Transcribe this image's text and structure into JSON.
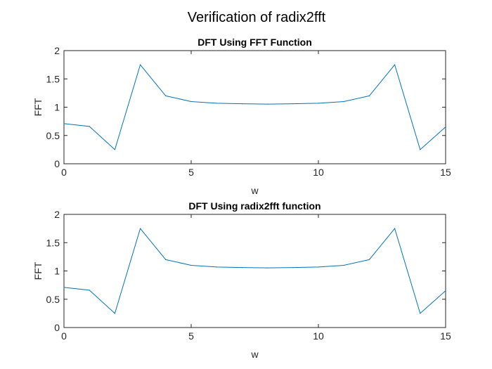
{
  "figure": {
    "title": "Verification of radix2fft"
  },
  "chart_data": [
    {
      "type": "line",
      "title": "DFT Using FFT Function",
      "xlabel": "w",
      "ylabel": "FFT",
      "xlim": [
        0,
        15
      ],
      "ylim": [
        0,
        2
      ],
      "xticks": [
        0,
        5,
        10,
        15
      ],
      "yticks": [
        0,
        0.5,
        1,
        1.5,
        2
      ],
      "xtick_labels": [
        "0",
        "5",
        "10",
        "15"
      ],
      "ytick_labels": [
        "0",
        "0.5",
        "1",
        "1.5",
        "2"
      ],
      "grid": false,
      "box": true,
      "series": [
        {
          "color": "#0072BD",
          "x": [
            0,
            1,
            2,
            3,
            4,
            5,
            6,
            7,
            8,
            9,
            10,
            11,
            12,
            13,
            14,
            15
          ],
          "y": [
            0.71,
            0.66,
            0.25,
            1.75,
            1.2,
            1.1,
            1.07,
            1.06,
            1.055,
            1.06,
            1.07,
            1.1,
            1.2,
            1.75,
            0.25,
            0.65
          ]
        }
      ]
    },
    {
      "type": "line",
      "title": "DFT Using radix2fft function",
      "xlabel": "w",
      "ylabel": "FFT",
      "xlim": [
        0,
        15
      ],
      "ylim": [
        0,
        2
      ],
      "xticks": [
        0,
        5,
        10,
        15
      ],
      "yticks": [
        0,
        0.5,
        1,
        1.5,
        2
      ],
      "xtick_labels": [
        "0",
        "5",
        "10",
        "15"
      ],
      "ytick_labels": [
        "0",
        "0.5",
        "1",
        "1.5",
        "2"
      ],
      "grid": false,
      "box": true,
      "series": [
        {
          "color": "#0072BD",
          "x": [
            0,
            1,
            2,
            3,
            4,
            5,
            6,
            7,
            8,
            9,
            10,
            11,
            12,
            13,
            14,
            15
          ],
          "y": [
            0.71,
            0.66,
            0.25,
            1.75,
            1.2,
            1.1,
            1.07,
            1.06,
            1.055,
            1.06,
            1.07,
            1.1,
            1.2,
            1.75,
            0.25,
            0.65
          ]
        }
      ]
    }
  ]
}
